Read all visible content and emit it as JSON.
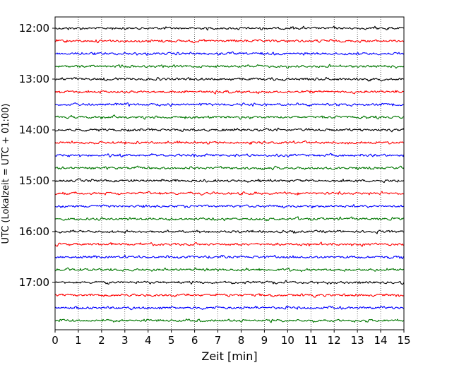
{
  "chart_data": {
    "type": "line",
    "subtype": "helicorder",
    "xlabel": "Zeit  [min]",
    "ylabel": "UTC (Lokalzeit = UTC + 01:00)",
    "xlim": [
      0,
      15
    ],
    "x_ticks": [
      "0",
      "1",
      "2",
      "3",
      "4",
      "5",
      "6",
      "7",
      "8",
      "9",
      "10",
      "11",
      "12",
      "13",
      "14",
      "15"
    ],
    "y_tick_labels": [
      "12:00",
      "13:00",
      "14:00",
      "15:00",
      "16:00",
      "17:00"
    ],
    "vertical_grid": "dotted",
    "trace_colors": [
      "#000000",
      "#ff0000",
      "#0000ff",
      "#007700"
    ],
    "traces": [
      {
        "start": "12:00"
      },
      {
        "start": "12:15"
      },
      {
        "start": "12:30"
      },
      {
        "start": "12:45"
      },
      {
        "start": "13:00"
      },
      {
        "start": "13:15"
      },
      {
        "start": "13:30"
      },
      {
        "start": "13:45"
      },
      {
        "start": "14:00"
      },
      {
        "start": "14:15"
      },
      {
        "start": "14:30"
      },
      {
        "start": "14:45"
      },
      {
        "start": "15:00"
      },
      {
        "start": "15:15"
      },
      {
        "start": "15:30"
      },
      {
        "start": "15:45"
      },
      {
        "start": "16:00"
      },
      {
        "start": "16:15"
      },
      {
        "start": "16:30"
      },
      {
        "start": "16:45"
      },
      {
        "start": "17:00"
      },
      {
        "start": "17:15"
      },
      {
        "start": "17:30"
      },
      {
        "start": "17:45"
      }
    ]
  }
}
